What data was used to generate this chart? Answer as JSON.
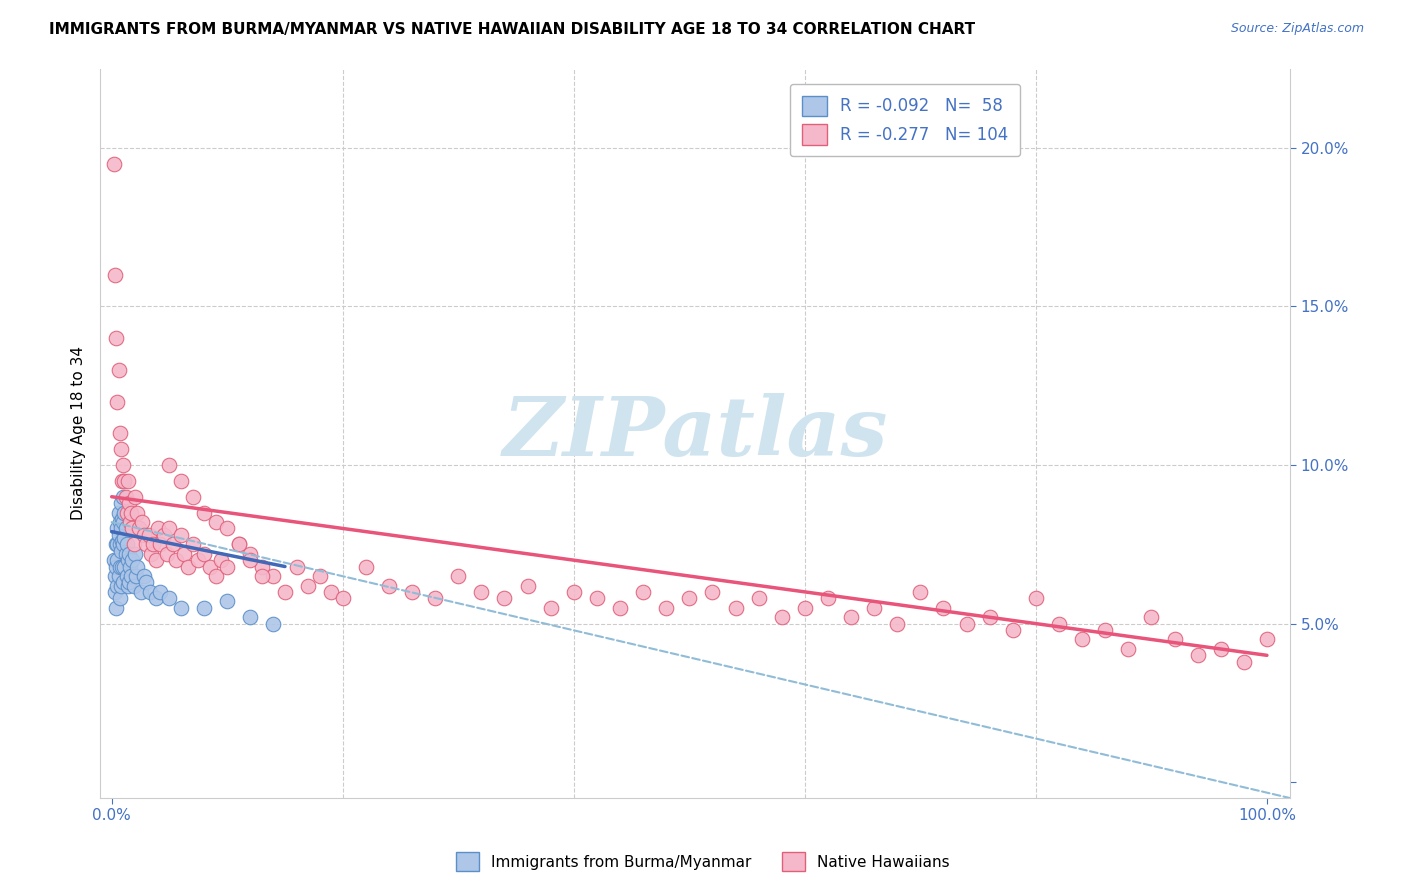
{
  "title": "IMMIGRANTS FROM BURMA/MYANMAR VS NATIVE HAWAIIAN DISABILITY AGE 18 TO 34 CORRELATION CHART",
  "source": "Source: ZipAtlas.com",
  "ylabel": "Disability Age 18 to 34",
  "r_blue": -0.092,
  "n_blue": 58,
  "r_pink": -0.277,
  "n_pink": 104,
  "xlim": [
    -0.01,
    1.02
  ],
  "ylim": [
    -0.005,
    0.225
  ],
  "ytick_positions": [
    0.0,
    0.05,
    0.1,
    0.15,
    0.2
  ],
  "yticklabels_right": [
    "",
    "5.0%",
    "10.0%",
    "15.0%",
    "20.0%"
  ],
  "legend_label_blue": "Immigrants from Burma/Myanmar",
  "legend_label_pink": "Native Hawaiians",
  "color_blue_fill": "#aec6e8",
  "color_blue_edge": "#5b8fc9",
  "color_blue_line": "#4169b8",
  "color_pink_fill": "#f5b8ca",
  "color_pink_edge": "#e0607a",
  "color_pink_line": "#e8547a",
  "color_dashed": "#90bcd8",
  "watermark_color": "#d0e4f0",
  "blue_x": [
    0.002,
    0.003,
    0.003,
    0.004,
    0.004,
    0.004,
    0.005,
    0.005,
    0.005,
    0.005,
    0.006,
    0.006,
    0.006,
    0.007,
    0.007,
    0.007,
    0.007,
    0.008,
    0.008,
    0.008,
    0.008,
    0.009,
    0.009,
    0.009,
    0.01,
    0.01,
    0.01,
    0.01,
    0.011,
    0.011,
    0.011,
    0.012,
    0.012,
    0.013,
    0.013,
    0.014,
    0.014,
    0.015,
    0.015,
    0.016,
    0.017,
    0.018,
    0.019,
    0.02,
    0.021,
    0.022,
    0.025,
    0.028,
    0.03,
    0.033,
    0.038,
    0.042,
    0.05,
    0.06,
    0.08,
    0.1,
    0.12,
    0.14
  ],
  "blue_y": [
    0.07,
    0.065,
    0.06,
    0.075,
    0.068,
    0.055,
    0.08,
    0.075,
    0.07,
    0.062,
    0.085,
    0.078,
    0.065,
    0.082,
    0.075,
    0.068,
    0.058,
    0.088,
    0.08,
    0.073,
    0.062,
    0.083,
    0.076,
    0.068,
    0.09,
    0.082,
    0.075,
    0.063,
    0.085,
    0.077,
    0.068,
    0.08,
    0.072,
    0.075,
    0.065,
    0.07,
    0.062,
    0.072,
    0.063,
    0.068,
    0.065,
    0.07,
    0.062,
    0.072,
    0.065,
    0.068,
    0.06,
    0.065,
    0.063,
    0.06,
    0.058,
    0.06,
    0.058,
    0.055,
    0.055,
    0.057,
    0.052,
    0.05
  ],
  "pink_x": [
    0.002,
    0.003,
    0.004,
    0.005,
    0.006,
    0.007,
    0.008,
    0.009,
    0.01,
    0.011,
    0.012,
    0.013,
    0.014,
    0.015,
    0.016,
    0.017,
    0.018,
    0.019,
    0.02,
    0.022,
    0.024,
    0.026,
    0.028,
    0.03,
    0.032,
    0.034,
    0.036,
    0.038,
    0.04,
    0.042,
    0.045,
    0.048,
    0.05,
    0.053,
    0.056,
    0.06,
    0.063,
    0.066,
    0.07,
    0.075,
    0.08,
    0.085,
    0.09,
    0.095,
    0.1,
    0.11,
    0.12,
    0.13,
    0.14,
    0.15,
    0.16,
    0.17,
    0.18,
    0.19,
    0.2,
    0.22,
    0.24,
    0.26,
    0.28,
    0.3,
    0.32,
    0.34,
    0.36,
    0.38,
    0.4,
    0.42,
    0.44,
    0.46,
    0.48,
    0.5,
    0.52,
    0.54,
    0.56,
    0.58,
    0.6,
    0.62,
    0.64,
    0.66,
    0.68,
    0.7,
    0.72,
    0.74,
    0.76,
    0.78,
    0.8,
    0.82,
    0.84,
    0.86,
    0.88,
    0.9,
    0.92,
    0.94,
    0.96,
    0.98,
    1.0,
    0.05,
    0.06,
    0.07,
    0.08,
    0.09,
    0.1,
    0.11,
    0.12,
    0.13
  ],
  "pink_y": [
    0.195,
    0.16,
    0.14,
    0.12,
    0.13,
    0.11,
    0.105,
    0.095,
    0.1,
    0.095,
    0.09,
    0.085,
    0.095,
    0.088,
    0.082,
    0.085,
    0.08,
    0.075,
    0.09,
    0.085,
    0.08,
    0.082,
    0.078,
    0.075,
    0.078,
    0.072,
    0.075,
    0.07,
    0.08,
    0.075,
    0.078,
    0.072,
    0.08,
    0.075,
    0.07,
    0.078,
    0.072,
    0.068,
    0.075,
    0.07,
    0.072,
    0.068,
    0.065,
    0.07,
    0.068,
    0.075,
    0.072,
    0.068,
    0.065,
    0.06,
    0.068,
    0.062,
    0.065,
    0.06,
    0.058,
    0.068,
    0.062,
    0.06,
    0.058,
    0.065,
    0.06,
    0.058,
    0.062,
    0.055,
    0.06,
    0.058,
    0.055,
    0.06,
    0.055,
    0.058,
    0.06,
    0.055,
    0.058,
    0.052,
    0.055,
    0.058,
    0.052,
    0.055,
    0.05,
    0.06,
    0.055,
    0.05,
    0.052,
    0.048,
    0.058,
    0.05,
    0.045,
    0.048,
    0.042,
    0.052,
    0.045,
    0.04,
    0.042,
    0.038,
    0.045,
    0.1,
    0.095,
    0.09,
    0.085,
    0.082,
    0.08,
    0.075,
    0.07,
    0.065
  ],
  "blue_line_x0": 0.0,
  "blue_line_x1": 0.15,
  "blue_line_y0": 0.079,
  "blue_line_y1": 0.068,
  "pink_line_x0": 0.0,
  "pink_line_x1": 1.0,
  "pink_line_y0": 0.09,
  "pink_line_y1": 0.04,
  "dashed_line_x0": 0.0,
  "dashed_line_x1": 1.02,
  "dashed_line_y0": 0.082,
  "dashed_line_y1": -0.005
}
